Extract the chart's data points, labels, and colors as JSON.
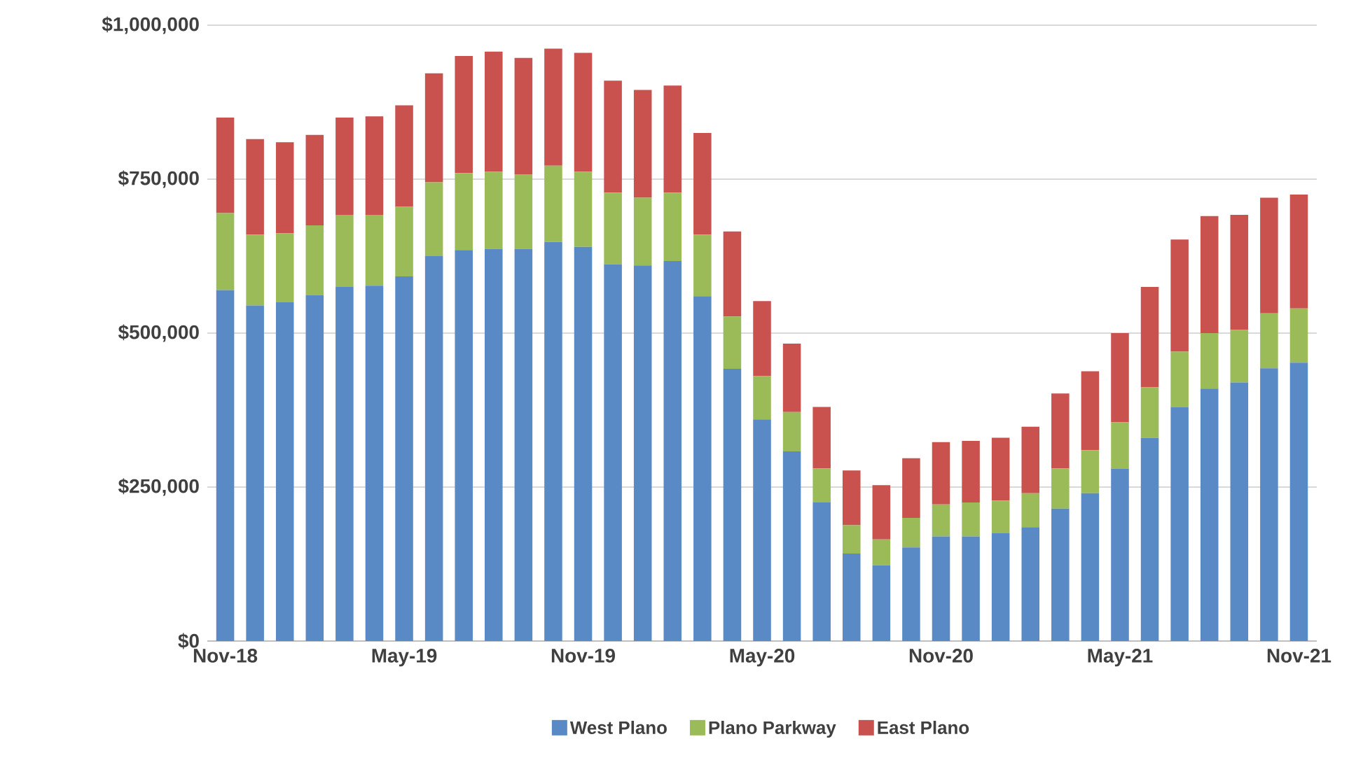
{
  "chart_data": {
    "type": "bar",
    "stacked": true,
    "categories": [
      "Nov-18",
      null,
      null,
      null,
      null,
      null,
      "May-19",
      null,
      null,
      null,
      null,
      null,
      "Nov-19",
      null,
      null,
      null,
      null,
      null,
      "May-20",
      null,
      null,
      null,
      null,
      null,
      "Nov-20",
      null,
      null,
      null,
      null,
      null,
      "May-21",
      null,
      null,
      null,
      null,
      null,
      "Nov-21"
    ],
    "series": [
      {
        "name": "West Plano",
        "color": "#5a8ac6",
        "values": [
          570000,
          545000,
          550000,
          562000,
          575000,
          577000,
          592000,
          625000,
          635000,
          637000,
          637000,
          648000,
          640000,
          612000,
          610000,
          617000,
          560000,
          442000,
          360000,
          308000,
          225000,
          142000,
          123000,
          152000,
          170000,
          170000,
          175000,
          185000,
          215000,
          240000,
          280000,
          330000,
          380000,
          410000,
          420000,
          443000,
          452000
        ]
      },
      {
        "name": "Plano Parkway",
        "color": "#9bbb59",
        "values": [
          125000,
          115000,
          112000,
          113000,
          117000,
          115000,
          113000,
          120000,
          125000,
          125000,
          121000,
          124000,
          122000,
          116000,
          110000,
          111000,
          100000,
          85000,
          70000,
          64000,
          55000,
          46000,
          42000,
          48000,
          52000,
          55000,
          53000,
          55000,
          65000,
          70000,
          75000,
          82000,
          90000,
          90000,
          85000,
          89000,
          88000
        ]
      },
      {
        "name": "East Plano",
        "color": "#c9524f",
        "values": [
          155000,
          155000,
          148000,
          147000,
          158000,
          160000,
          165000,
          177000,
          190000,
          195000,
          189000,
          190000,
          193000,
          182000,
          175000,
          174000,
          165000,
          138000,
          122000,
          111000,
          100000,
          89000,
          88000,
          97000,
          101000,
          100000,
          102000,
          108000,
          122000,
          128000,
          145000,
          163000,
          182000,
          190000,
          187000,
          188000,
          185000
        ]
      }
    ],
    "ylim": [
      0,
      1000000
    ],
    "yticks": [
      {
        "value": 0,
        "label": "$0"
      },
      {
        "value": 250000,
        "label": "$250,000"
      },
      {
        "value": 500000,
        "label": "$500,000"
      },
      {
        "value": 750000,
        "label": "$750,000"
      },
      {
        "value": 1000000,
        "label": "$1,000,000"
      }
    ],
    "grid": "y",
    "legend": "bottom"
  }
}
